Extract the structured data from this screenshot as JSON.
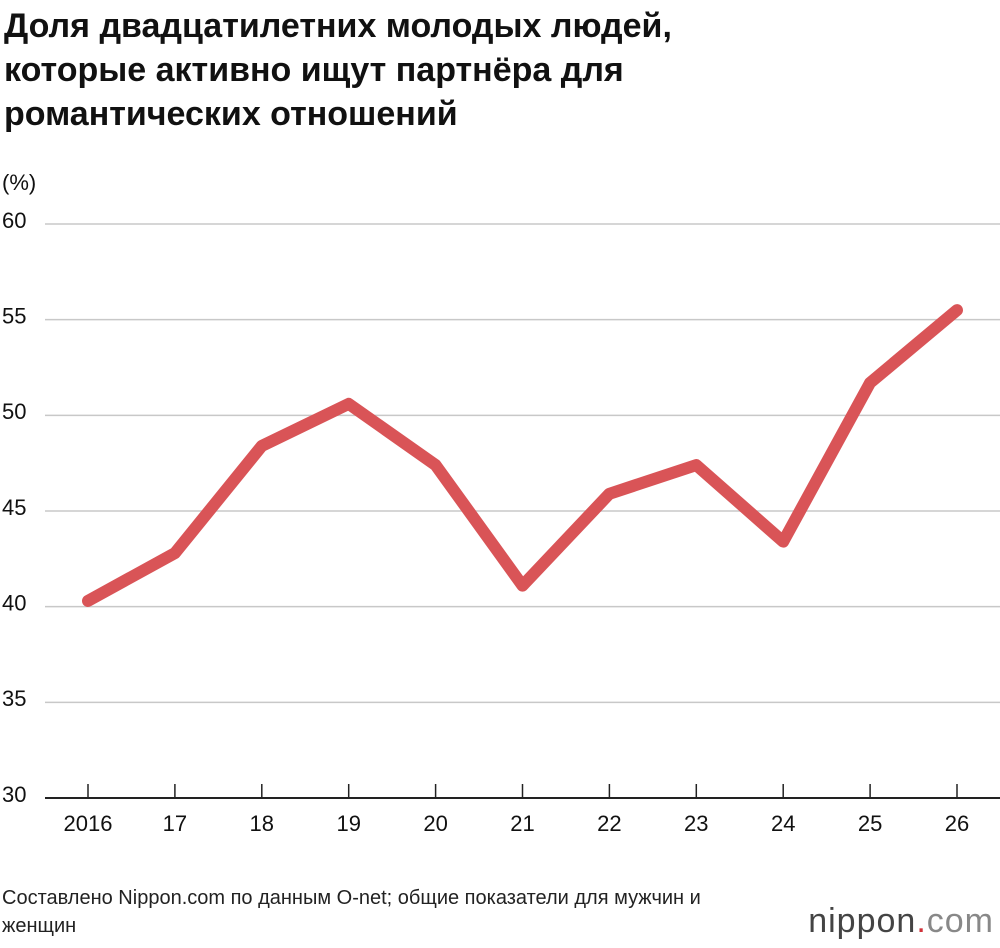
{
  "chart_data": {
    "type": "line",
    "title": "Доля двадцатилетних молодых людей, которые активно ищут партнёра для романтических отношений",
    "y_label": "(%)",
    "categories": [
      "2016",
      "17",
      "18",
      "19",
      "20",
      "21",
      "22",
      "23",
      "24",
      "25",
      "26"
    ],
    "series": [
      {
        "color": "#d95457",
        "values": [
          40.3,
          42.8,
          48.4,
          50.6,
          47.4,
          41.1,
          45.9,
          47.4,
          43.4,
          51.7,
          55.5
        ]
      }
    ],
    "ylim": [
      30,
      60
    ],
    "yticks": [
      30,
      35,
      40,
      45,
      50,
      55,
      60
    ],
    "grid": true,
    "source": "Составлено Nippon.com по данным O-net; общие показатели для мужчин и женщин"
  },
  "logo": {
    "name": "nippon",
    "dot": ".",
    "tld": "com"
  }
}
